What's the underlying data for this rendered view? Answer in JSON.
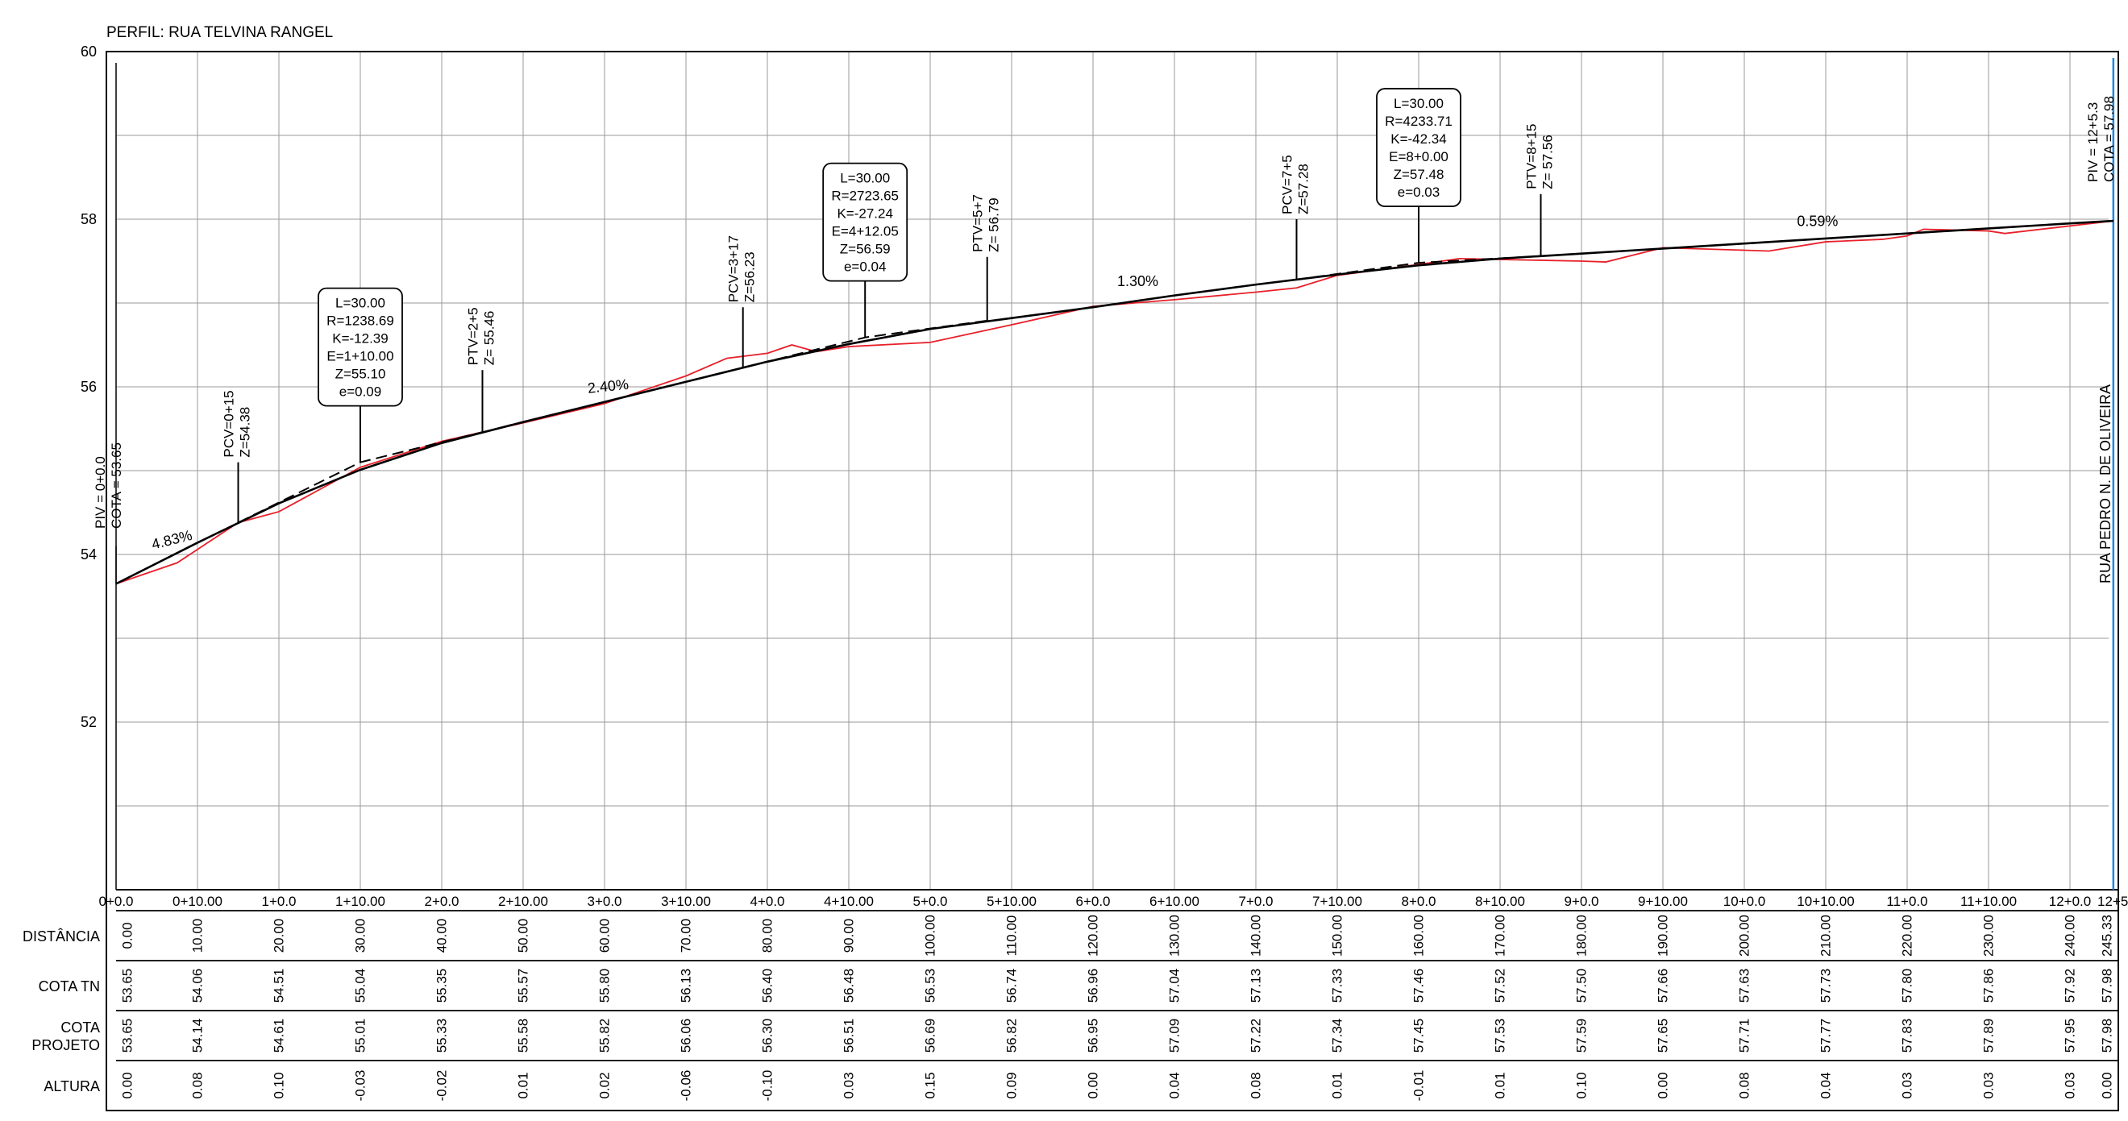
{
  "title": "PERFIL: RUA TELVINA RANGEL",
  "street_label": "RUA PEDRO N. DE OLIVEIRA",
  "colors": {
    "grid": "#9a9a9a",
    "terrain": "#e8202a",
    "project": "#000000",
    "boundary": "#1e88e5"
  },
  "chart_data": {
    "type": "line",
    "xlim": [
      0,
      245.33
    ],
    "ylim": [
      50,
      60
    ],
    "y_ticks": [
      "52",
      "54",
      "56",
      "58",
      "60"
    ],
    "x_ticks": [
      {
        "x": 0,
        "label": "0+0.0"
      },
      {
        "x": 10,
        "label": "0+10.00"
      },
      {
        "x": 20,
        "label": "1+0.0"
      },
      {
        "x": 30,
        "label": "1+10.00"
      },
      {
        "x": 40,
        "label": "2+0.0"
      },
      {
        "x": 50,
        "label": "2+10.00"
      },
      {
        "x": 60,
        "label": "3+0.0"
      },
      {
        "x": 70,
        "label": "3+10.00"
      },
      {
        "x": 80,
        "label": "4+0.0"
      },
      {
        "x": 90,
        "label": "4+10.00"
      },
      {
        "x": 100,
        "label": "5+0.0"
      },
      {
        "x": 110,
        "label": "5+10.00"
      },
      {
        "x": 120,
        "label": "6+0.0"
      },
      {
        "x": 130,
        "label": "6+10.00"
      },
      {
        "x": 140,
        "label": "7+0.0"
      },
      {
        "x": 150,
        "label": "7+10.00"
      },
      {
        "x": 160,
        "label": "8+0.0"
      },
      {
        "x": 170,
        "label": "8+10.00"
      },
      {
        "x": 180,
        "label": "9+0.0"
      },
      {
        "x": 190,
        "label": "9+10.00"
      },
      {
        "x": 200,
        "label": "10+0.0"
      },
      {
        "x": 210,
        "label": "10+10.00"
      },
      {
        "x": 220,
        "label": "11+0.0"
      },
      {
        "x": 230,
        "label": "11+10.00"
      },
      {
        "x": 240,
        "label": "12+0.0"
      },
      {
        "x": 245.33,
        "label": "12+5.3"
      }
    ],
    "series": [
      {
        "name": "terreno",
        "color": "#e8202a",
        "points": [
          [
            0,
            53.65
          ],
          [
            7.5,
            53.9
          ],
          [
            15,
            54.38
          ],
          [
            20,
            54.51
          ],
          [
            30,
            55.04
          ],
          [
            40,
            55.35
          ],
          [
            50,
            55.57
          ],
          [
            60,
            55.8
          ],
          [
            70,
            56.13
          ],
          [
            75,
            56.34
          ],
          [
            80,
            56.4
          ],
          [
            83,
            56.5
          ],
          [
            86,
            56.42
          ],
          [
            90,
            56.48
          ],
          [
            100,
            56.53
          ],
          [
            110,
            56.74
          ],
          [
            120,
            56.96
          ],
          [
            130,
            57.04
          ],
          [
            140,
            57.13
          ],
          [
            145,
            57.18
          ],
          [
            150,
            57.33
          ],
          [
            160,
            57.46
          ],
          [
            165,
            57.53
          ],
          [
            170,
            57.52
          ],
          [
            180,
            57.5
          ],
          [
            183,
            57.49
          ],
          [
            190,
            57.66
          ],
          [
            200,
            57.63
          ],
          [
            203,
            57.62
          ],
          [
            210,
            57.73
          ],
          [
            217,
            57.76
          ],
          [
            220,
            57.8
          ],
          [
            222,
            57.88
          ],
          [
            230,
            57.86
          ],
          [
            232,
            57.83
          ],
          [
            240,
            57.92
          ],
          [
            245.33,
            57.98
          ]
        ]
      },
      {
        "name": "greide",
        "color": "#000000",
        "points": [
          [
            0,
            53.65
          ],
          [
            10,
            54.14
          ],
          [
            20,
            54.61
          ],
          [
            30,
            55.01
          ],
          [
            40,
            55.33
          ],
          [
            50,
            55.58
          ],
          [
            60,
            55.82
          ],
          [
            70,
            56.06
          ],
          [
            80,
            56.3
          ],
          [
            90,
            56.51
          ],
          [
            100,
            56.69
          ],
          [
            110,
            56.82
          ],
          [
            120,
            56.95
          ],
          [
            130,
            57.09
          ],
          [
            140,
            57.22
          ],
          [
            150,
            57.34
          ],
          [
            160,
            57.45
          ],
          [
            170,
            57.53
          ],
          [
            180,
            57.59
          ],
          [
            190,
            57.65
          ],
          [
            200,
            57.71
          ],
          [
            210,
            57.77
          ],
          [
            220,
            57.83
          ],
          [
            230,
            57.89
          ],
          [
            240,
            57.95
          ],
          [
            245.33,
            57.98
          ]
        ]
      },
      {
        "name": "tangentes",
        "color": "#000000",
        "dash": true,
        "segments": [
          [
            [
              15,
              54.38
            ],
            [
              30,
              55.1
            ],
            [
              45,
              55.46
            ]
          ],
          [
            [
              77,
              56.23
            ],
            [
              92.05,
              56.59
            ],
            [
              107,
              56.79
            ]
          ],
          [
            [
              145,
              57.28
            ],
            [
              160,
              57.48
            ],
            [
              175,
              57.56
            ]
          ]
        ]
      }
    ],
    "slope_labels": [
      {
        "x": 7,
        "y": 54.12,
        "text": "4.83%",
        "angle": -14
      },
      {
        "x": 60.5,
        "y": 55.95,
        "text": "2.40%",
        "angle": -6
      },
      {
        "x": 125.5,
        "y": 57.2,
        "text": "1.30%",
        "angle": 0
      },
      {
        "x": 209,
        "y": 57.92,
        "text": "0.59%",
        "angle": 0
      }
    ],
    "curve_boxes": [
      {
        "anchor_x": 30,
        "anchor_y": 55.1,
        "lines": [
          "L=30.00",
          "R=1238.69",
          "K=-12.39",
          "E=1+10.00",
          "Z=55.10",
          "e=0.09"
        ]
      },
      {
        "anchor_x": 92,
        "anchor_y": 56.59,
        "lines": [
          "L=30.00",
          "R=2723.65",
          "K=-27.24",
          "E=4+12.05",
          "Z=56.59",
          "e=0.04"
        ]
      },
      {
        "anchor_x": 160,
        "anchor_y": 57.48,
        "lines": [
          "L=30.00",
          "R=4233.71",
          "K=-42.34",
          "E=8+0.00",
          "Z=57.48",
          "e=0.03"
        ]
      }
    ],
    "stakes": [
      {
        "x": 15,
        "y": 54.38,
        "top": 55.1,
        "lines": [
          "PCV=0+15",
          "Z=54.38"
        ]
      },
      {
        "x": 45,
        "y": 55.46,
        "top": 56.2,
        "lines": [
          "PTV=2+5",
          "Z= 55.46"
        ]
      },
      {
        "x": 77,
        "y": 56.23,
        "top": 56.95,
        "lines": [
          "PCV=3+17",
          "Z=56.23"
        ]
      },
      {
        "x": 107,
        "y": 56.79,
        "top": 57.55,
        "lines": [
          "PTV=5+7",
          "Z= 56.79"
        ]
      },
      {
        "x": 145,
        "y": 57.28,
        "top": 58.0,
        "lines": [
          "PCV=7+5",
          "Z=57.28"
        ]
      },
      {
        "x": 175,
        "y": 57.56,
        "top": 58.3,
        "lines": [
          "PTV=8+15",
          "Z= 57.56"
        ]
      }
    ],
    "piv_start": {
      "x": 0,
      "lines": [
        "PIV = 0+0.0",
        "COTA =  53.65"
      ]
    },
    "piv_end": {
      "x": 245.33,
      "lines": [
        "PIV = 12+5.3",
        "COTA =  57.98"
      ]
    },
    "table": {
      "rows": [
        {
          "label": [
            "DISTÂNCIA"
          ],
          "values": [
            "0.00",
            "10.00",
            "20.00",
            "30.00",
            "40.00",
            "50.00",
            "60.00",
            "70.00",
            "80.00",
            "90.00",
            "100.00",
            "110.00",
            "120.00",
            "130.00",
            "140.00",
            "150.00",
            "160.00",
            "170.00",
            "180.00",
            "190.00",
            "200.00",
            "210.00",
            "220.00",
            "230.00",
            "240.00",
            "245.33"
          ]
        },
        {
          "label": [
            "COTA TN"
          ],
          "values": [
            "53.65",
            "54.06",
            "54.51",
            "55.04",
            "55.35",
            "55.57",
            "55.80",
            "56.13",
            "56.40",
            "56.48",
            "56.53",
            "56.74",
            "56.96",
            "57.04",
            "57.13",
            "57.33",
            "57.46",
            "57.52",
            "57.50",
            "57.66",
            "57.63",
            "57.73",
            "57.80",
            "57.86",
            "57.92",
            "57.98"
          ]
        },
        {
          "label": [
            "COTA",
            "PROJETO"
          ],
          "values": [
            "53.65",
            "54.14",
            "54.61",
            "55.01",
            "55.33",
            "55.58",
            "55.82",
            "56.06",
            "56.30",
            "56.51",
            "56.69",
            "56.82",
            "56.95",
            "57.09",
            "57.22",
            "57.34",
            "57.45",
            "57.53",
            "57.59",
            "57.65",
            "57.71",
            "57.77",
            "57.83",
            "57.89",
            "57.95",
            "57.98"
          ]
        },
        {
          "label": [
            "ALTURA"
          ],
          "values": [
            "0.00",
            "0.08",
            "0.10",
            "-0.03",
            "-0.02",
            "0.01",
            "0.02",
            "-0.06",
            "-0.10",
            "0.03",
            "0.15",
            "0.09",
            "0.00",
            "0.04",
            "0.08",
            "0.01",
            "-0.01",
            "0.01",
            "0.10",
            "0.00",
            "0.08",
            "0.04",
            "0.03",
            "0.03",
            "0.03",
            "0.00"
          ]
        }
      ]
    }
  }
}
